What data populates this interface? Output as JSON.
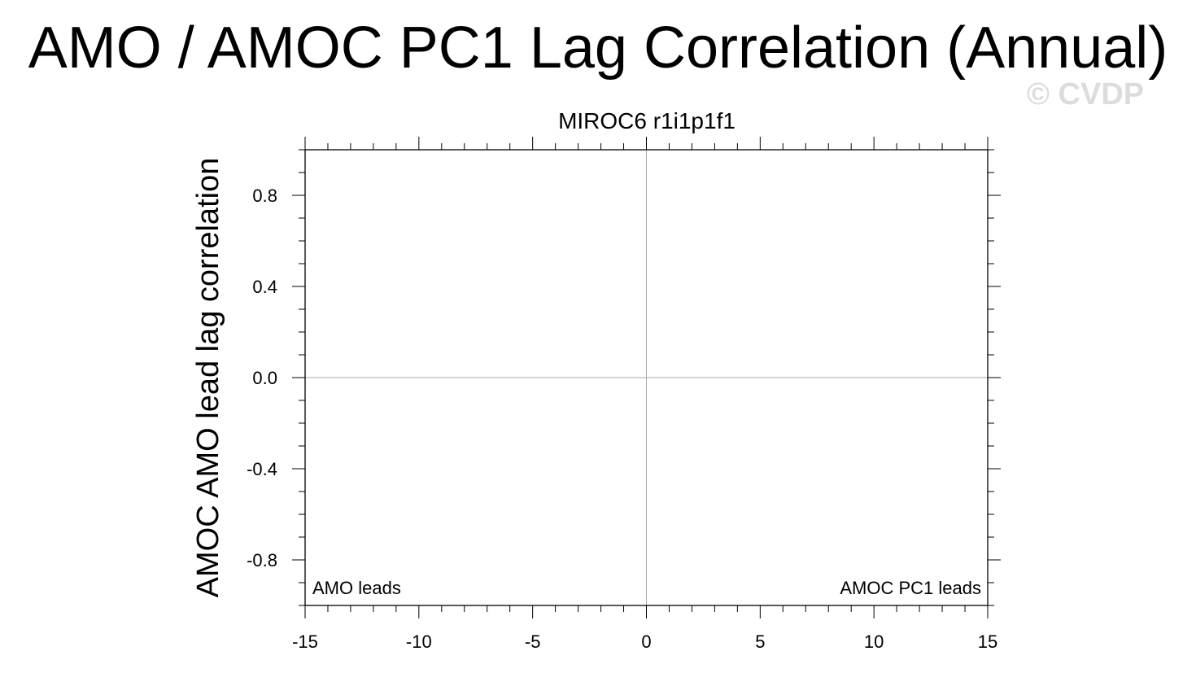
{
  "page": {
    "title": "AMO / AMOC PC1 Lag Correlation (Annual)",
    "watermark": "© CVDP"
  },
  "chart_data": {
    "type": "line",
    "title": "MIROC6 r1i1p1f1",
    "xlabel": "",
    "ylabel": "AMOC AMO lead lag correlation",
    "xlim": [
      -15,
      15
    ],
    "ylim": [
      -1,
      1
    ],
    "x_ticks": [
      -15,
      -10,
      -5,
      0,
      5,
      10,
      15
    ],
    "x_tick_labels": [
      "-15",
      "-10",
      "-5",
      "0",
      "5",
      "10",
      "15"
    ],
    "y_ticks": [
      -0.8,
      -0.4,
      0.0,
      0.4,
      0.8
    ],
    "y_tick_labels": [
      "-0.8",
      "-0.4",
      "0.0",
      "0.4",
      "0.8"
    ],
    "reference_lines": {
      "x": 0,
      "y": 0,
      "color": "#aaaaaa"
    },
    "annotations": {
      "left": "AMO leads",
      "right": "AMOC PC1 leads"
    },
    "series": [],
    "grid": false,
    "legend": "none"
  }
}
